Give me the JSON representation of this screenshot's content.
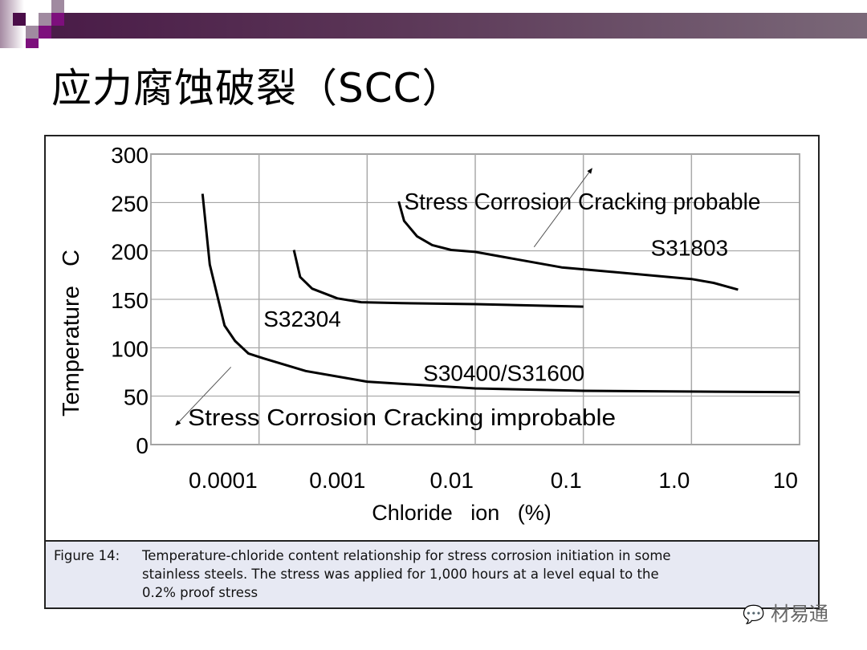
{
  "slide": {
    "title": "应力腐蚀破裂（SCC）",
    "watermark": "材易通",
    "colors": {
      "deco_dark": "#4a0d48",
      "deco_purple": "#7d0f7c",
      "deco_light": "#a08aa0"
    }
  },
  "caption": {
    "label": "Figure 14:",
    "line1": "Temperature-chloride content relationship for stress corrosion initiation in some",
    "line2": "stainless steels. The stress was applied for 1,000 hours at a level equal to the",
    "line3": "0.2% proof stress"
  },
  "chart_data": {
    "type": "line",
    "title": "",
    "xlabel": "Chloride   ion   (%)",
    "ylabel": "Temperature   C",
    "xscale": "log",
    "xlim": [
      1e-05,
      10
    ],
    "ylim": [
      0,
      300
    ],
    "grid": true,
    "xticks": [
      {
        "value": 0.0001,
        "label": "0.0001"
      },
      {
        "value": 0.001,
        "label": "0.001"
      },
      {
        "value": 0.01,
        "label": "0.01"
      },
      {
        "value": 0.1,
        "label": "0.1"
      },
      {
        "value": 1,
        "label": "1.0"
      },
      {
        "value": 10,
        "label": "10"
      }
    ],
    "yticks": [
      {
        "value": 0,
        "label": "0"
      },
      {
        "value": 50,
        "label": "50"
      },
      {
        "value": 100,
        "label": "100"
      },
      {
        "value": 150,
        "label": "150"
      },
      {
        "value": 200,
        "label": "200"
      },
      {
        "value": 250,
        "label": "250"
      },
      {
        "value": 300,
        "label": "300"
      }
    ],
    "series": [
      {
        "name": "S30400/S31600",
        "label_at": [
          0.0033,
          66
        ],
        "x": [
          3e-05,
          3.5e-05,
          4.8e-05,
          6e-05,
          8e-05,
          0.00011,
          0.00027,
          0.001,
          0.01,
          0.1,
          10
        ],
        "y": [
          259,
          186,
          123,
          107,
          94,
          89,
          76,
          65,
          58,
          55.5,
          54
        ]
      },
      {
        "name": "S32304",
        "label_at": [
          0.00011,
          122
        ],
        "x": [
          0.00021,
          0.00024,
          0.00031,
          0.00053,
          0.00088,
          0.0021,
          0.01,
          0.1
        ],
        "y": [
          201,
          173,
          161,
          151,
          147,
          146,
          145,
          142.5
        ]
      },
      {
        "name": "S31803",
        "label_at": [
          0.42,
          195
        ],
        "x": [
          0.00196,
          0.0022,
          0.0029,
          0.004,
          0.006,
          0.01,
          0.063,
          0.1,
          1,
          1.6,
          2.7
        ],
        "y": [
          251,
          231,
          215,
          206,
          201,
          199,
          183,
          181,
          171,
          167,
          160
        ]
      }
    ],
    "annotations": [
      {
        "text": "Stress Corrosion Cracking probable",
        "at": [
          0.0022,
          243
        ],
        "arrow_from": [
          0.035,
          204
        ],
        "arrow_to": [
          0.12,
          285
        ]
      },
      {
        "text": "Stress Corrosion Cracking improbable",
        "at": [
          2.2e-05,
          20
        ],
        "arrow_from": [
          5.5e-05,
          80
        ],
        "arrow_to": [
          1.7e-05,
          20
        ]
      }
    ]
  }
}
